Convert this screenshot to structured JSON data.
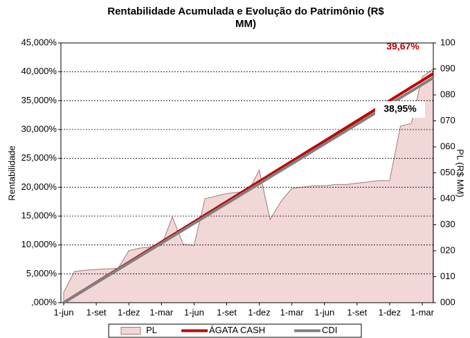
{
  "chart_data": {
    "type": "line",
    "title": "Rentabilidade Acumulada e Evolução do Patrimônio (R$ MM)",
    "ylabel": "Rentabilidade",
    "y2label": "PL (R$ MM)",
    "categories": [
      "1-jun",
      null,
      null,
      "1-set",
      null,
      null,
      "1-dez",
      null,
      null,
      "1-mar",
      null,
      null,
      "1-jun",
      null,
      null,
      "1-set",
      null,
      null,
      "1-dez",
      null,
      null,
      "1-mar",
      null,
      null,
      "1-jun",
      null,
      null,
      "1-set",
      null,
      null,
      "1-dez",
      null,
      null,
      "1-mar",
      null
    ],
    "series": [
      {
        "name": "PL",
        "color": "#f2d7d7",
        "axis": "y2",
        "kind": "area",
        "values": [
          4,
          12,
          12.5,
          12.8,
          13,
          13.2,
          20,
          21,
          21.5,
          22,
          33,
          22.5,
          22,
          40,
          41,
          42,
          42.5,
          43,
          51,
          32,
          39,
          44,
          44.5,
          45,
          45,
          45.5,
          45.5,
          46,
          46.5,
          47,
          47,
          68,
          69,
          87,
          90
        ]
      },
      {
        "name": "ÁGATA CASH",
        "color": "#c00000",
        "values": [
          0,
          1.17,
          2.33,
          3.5,
          4.67,
          5.83,
          7,
          8.17,
          9.33,
          10.5,
          11.67,
          12.83,
          14,
          15.17,
          16.34,
          17.5,
          18.67,
          19.84,
          21,
          22.17,
          23.34,
          24.5,
          25.67,
          26.84,
          28,
          29.17,
          30.34,
          31.5,
          32.67,
          33.84,
          35,
          36.17,
          37.34,
          38.5,
          39.67
        ],
        "value_labels": [
          null,
          null,
          null,
          null,
          null,
          null,
          null,
          null,
          null,
          null,
          null,
          null,
          null,
          null,
          null,
          null,
          null,
          null,
          null,
          null,
          null,
          null,
          null,
          null,
          null,
          null,
          null,
          null,
          null,
          null,
          null,
          null,
          null,
          null,
          "39,67%"
        ]
      },
      {
        "name": "CDI",
        "color": "#808080",
        "values": [
          0,
          1.15,
          2.29,
          3.44,
          4.58,
          5.73,
          6.87,
          8.02,
          9.16,
          10.31,
          11.46,
          12.6,
          13.75,
          14.89,
          16.04,
          17.18,
          18.33,
          19.48,
          20.62,
          21.77,
          22.91,
          24.06,
          25.2,
          26.35,
          27.49,
          28.64,
          29.79,
          30.93,
          32.08,
          33.22,
          34.37,
          35.51,
          36.66,
          37.8,
          38.95
        ],
        "value_labels": [
          null,
          null,
          null,
          null,
          null,
          null,
          null,
          null,
          null,
          null,
          null,
          null,
          null,
          null,
          null,
          null,
          null,
          null,
          null,
          null,
          null,
          null,
          null,
          null,
          null,
          null,
          null,
          null,
          null,
          null,
          null,
          null,
          null,
          null,
          "38,95%"
        ]
      }
    ],
    "ylim": [
      0,
      45
    ],
    "yticks": [
      {
        "value": 0,
        "label": ",000%"
      },
      {
        "value": 5,
        "label": "5,000%"
      },
      {
        "value": 10,
        "label": "10,000%"
      },
      {
        "value": 15,
        "label": "15,000%"
      },
      {
        "value": 20,
        "label": "20,000%"
      },
      {
        "value": 25,
        "label": "25,000%"
      },
      {
        "value": 30,
        "label": "30,000%"
      },
      {
        "value": 35,
        "label": "35,000%"
      },
      {
        "value": 40,
        "label": "40,000%"
      },
      {
        "value": 45,
        "label": "45,000%"
      }
    ],
    "y2lim": [
      0,
      100
    ],
    "y2ticks": [
      {
        "value": 0,
        "label": "000"
      },
      {
        "value": 10,
        "label": "010"
      },
      {
        "value": 20,
        "label": "020"
      },
      {
        "value": 30,
        "label": "030"
      },
      {
        "value": 40,
        "label": "040"
      },
      {
        "value": 50,
        "label": "050"
      },
      {
        "value": 60,
        "label": "060"
      },
      {
        "value": 70,
        "label": "070"
      },
      {
        "value": 80,
        "label": "080"
      },
      {
        "value": 90,
        "label": "090"
      },
      {
        "value": 100,
        "label": "100"
      }
    ],
    "grid": true,
    "legend": "bottom"
  }
}
